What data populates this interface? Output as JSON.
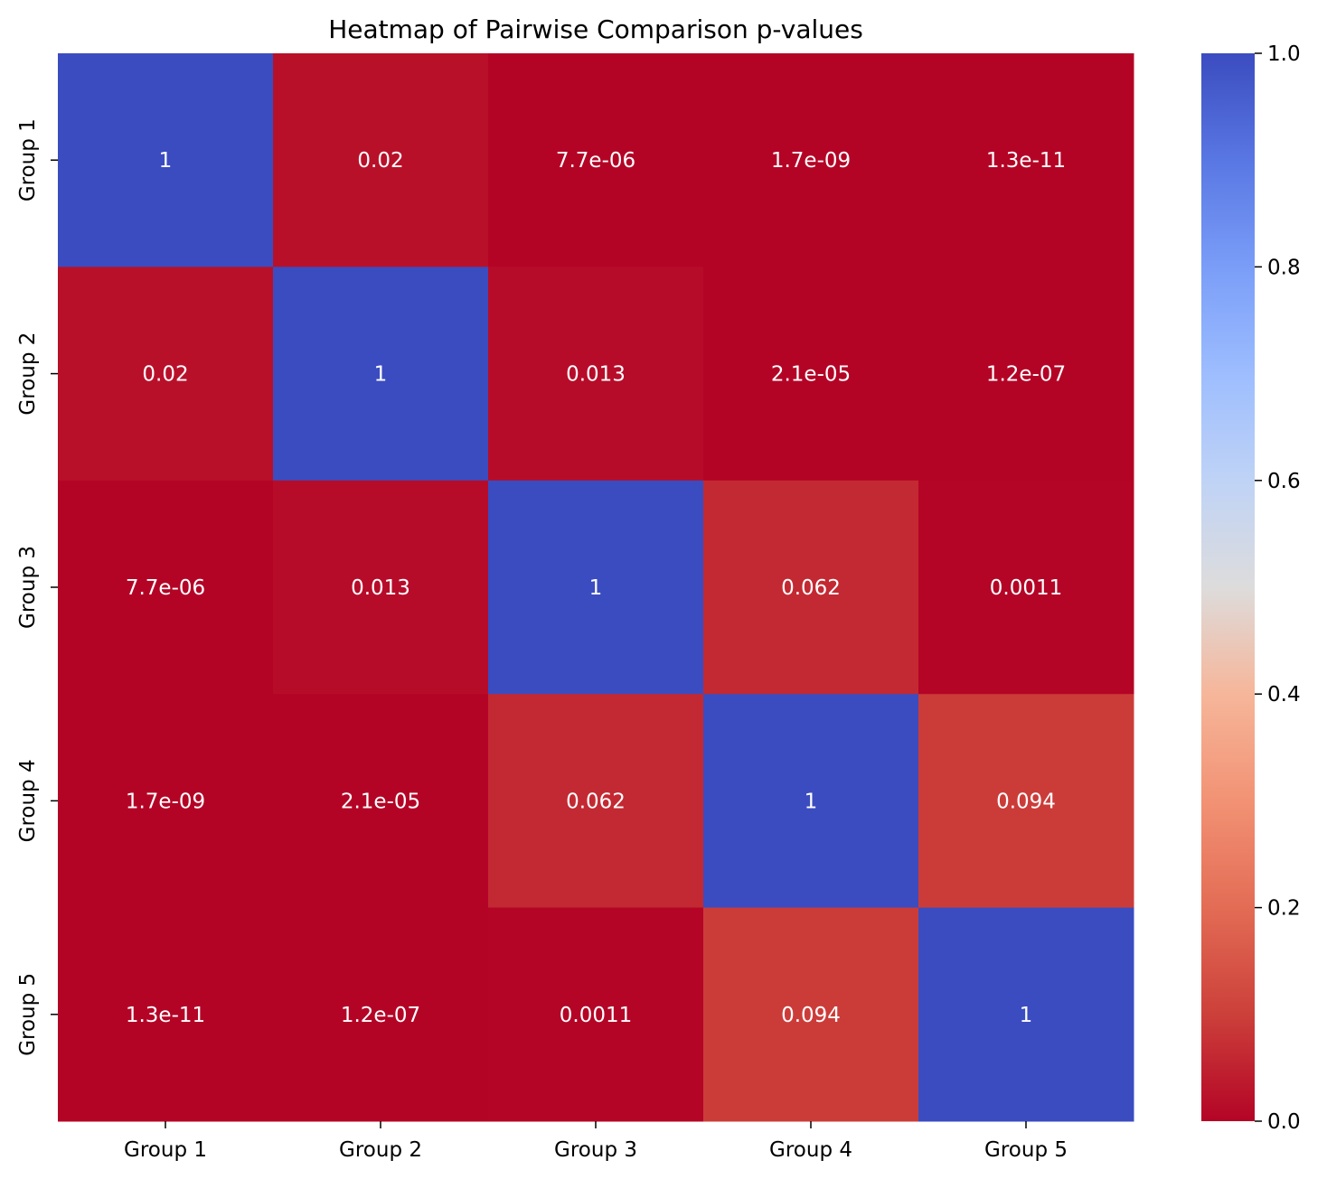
{
  "chart_data": {
    "type": "heatmap",
    "title": "Heatmap of Pairwise Comparison p-values",
    "xlabel": "",
    "ylabel": "",
    "x_categories": [
      "Group 1",
      "Group 2",
      "Group 3",
      "Group 4",
      "Group 5"
    ],
    "y_categories": [
      "Group 1",
      "Group 2",
      "Group 3",
      "Group 4",
      "Group 5"
    ],
    "values": [
      [
        1,
        0.02,
        7.7e-06,
        1.7e-09,
        1.3e-11
      ],
      [
        0.02,
        1,
        0.013,
        2.1e-05,
        1.2e-07
      ],
      [
        7.7e-06,
        0.013,
        1,
        0.062,
        0.0011
      ],
      [
        1.7e-09,
        2.1e-05,
        0.062,
        1,
        0.094
      ],
      [
        1.3e-11,
        1.2e-07,
        0.0011,
        0.094,
        1
      ]
    ],
    "annotations": [
      [
        "1",
        "0.02",
        "7.7e-06",
        "1.7e-09",
        "1.3e-11"
      ],
      [
        "0.02",
        "1",
        "0.013",
        "2.1e-05",
        "1.2e-07"
      ],
      [
        "7.7e-06",
        "0.013",
        "1",
        "0.062",
        "0.0011"
      ],
      [
        "1.7e-09",
        "2.1e-05",
        "0.062",
        "1",
        "0.094"
      ],
      [
        "1.3e-11",
        "1.2e-07",
        "0.0011",
        "0.094",
        "1"
      ]
    ],
    "colormap": "coolwarm_r",
    "colorbar": {
      "range": [
        0.0,
        1.0
      ],
      "ticks": [
        0.0,
        0.2,
        0.4,
        0.6,
        0.8,
        1.0
      ],
      "tick_labels": [
        "0.0",
        "0.2",
        "0.4",
        "0.6",
        "0.8",
        "1.0"
      ],
      "position": "right"
    },
    "colors": {
      "low": "#b40426",
      "mid": "#dddcdc",
      "high": "#3b4cc0",
      "annotation_text": "#ffffff"
    }
  }
}
